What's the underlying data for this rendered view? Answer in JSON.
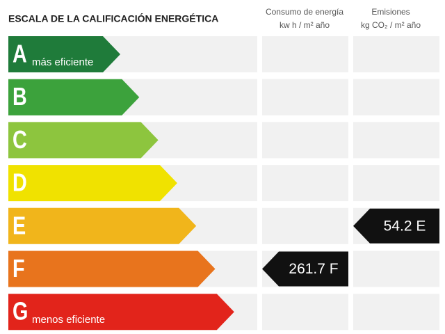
{
  "title": "ESCALA DE LA CALIFICACIÓN ENERGÉTICA",
  "columns": [
    {
      "title": "Consumo de energía",
      "unit": "kw h / m² año"
    },
    {
      "title": "Emisiones",
      "unit": "kg CO₂ / m² año"
    }
  ],
  "rows": [
    {
      "letter": "A",
      "label": "más eficiente",
      "color": "#1f7b3a"
    },
    {
      "letter": "B",
      "color": "#3ca23c"
    },
    {
      "letter": "C",
      "color": "#8dc53e"
    },
    {
      "letter": "D",
      "color": "#f0e200"
    },
    {
      "letter": "E",
      "color": "#f1b51b"
    },
    {
      "letter": "F",
      "color": "#e8741d"
    },
    {
      "letter": "G",
      "label": "menos eficiente",
      "color": "#e2241b"
    }
  ],
  "ratings": [
    {
      "text": "261.7 F",
      "column": 0,
      "row": 5
    },
    {
      "text": "54.2 E",
      "column": 1,
      "row": 4
    }
  ]
}
